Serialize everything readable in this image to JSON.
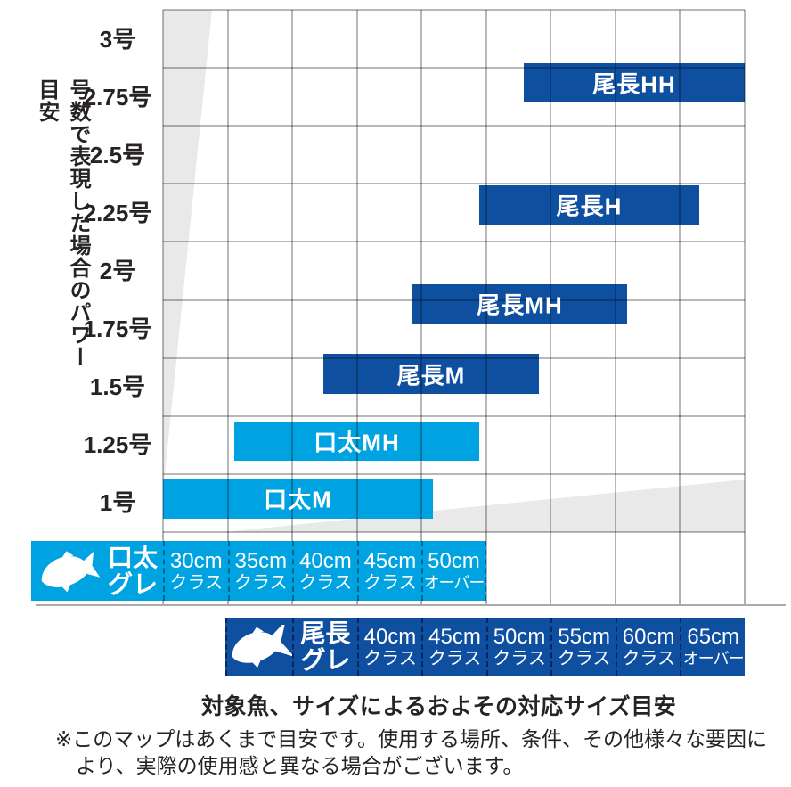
{
  "palette": {
    "light_blue": "#00a3e1",
    "dark_blue": "#0f4fa0",
    "wedge_gray": "#e9e9e9",
    "grid_gray": "#ababab",
    "text_dark": "#262226",
    "white": "#ffffff"
  },
  "y_axis": {
    "title": "号数で表現した場合のパワー目安",
    "labels": [
      "3号",
      "2.75号",
      "2.5号",
      "2.25号",
      "2号",
      "1.75号",
      "1.5号",
      "1.25号",
      "1号"
    ]
  },
  "chart_data": {
    "type": "bar",
    "orientation": "horizontal-range",
    "grid": {
      "cols": 9,
      "rows": 9
    },
    "power_axis_labels": [
      "3号",
      "2.75号",
      "2.5号",
      "2.25号",
      "2号",
      "1.75号",
      "1.5号",
      "1.25号",
      "1号"
    ],
    "kuchibuto_scale_classes": [
      "30cmクラス",
      "35cmクラス",
      "40cmクラス",
      "45cmクラス",
      "50cmオーバー"
    ],
    "oonaga_scale_classes": [
      "40cmクラス",
      "45cmクラス",
      "50cmクラス",
      "55cmクラス",
      "60cmクラス",
      "65cmオーバー"
    ],
    "series": [
      {
        "label": "尾長HH",
        "family": "oonaga",
        "color": "dark_blue",
        "col_start": 5.582,
        "col_end": 9.0,
        "row_start": 0.921,
        "row_end": 1.597,
        "power_range_gou": [
          2.73,
          2.9
        ],
        "size_scale": "oonaga",
        "size_range_cm": [
          53,
          70
        ]
      },
      {
        "label": "尾長H",
        "family": "oonaga",
        "color": "dark_blue",
        "col_start": 4.893,
        "col_end": 8.297,
        "row_start": 3.026,
        "row_end": 3.701,
        "power_range_gou": [
          2.2,
          2.37
        ],
        "size_scale": "oonaga",
        "size_range_cm": [
          49.5,
          66.5
        ]
      },
      {
        "label": "尾長MH",
        "family": "oonaga",
        "color": "dark_blue",
        "col_start": 3.859,
        "col_end": 7.181,
        "row_start": 4.73,
        "row_end": 5.406,
        "power_range_gou": [
          1.77,
          1.94
        ],
        "size_scale": "oonaga",
        "size_range_cm": [
          44.3,
          61
        ]
      },
      {
        "label": "尾長M",
        "family": "oonaga",
        "color": "dark_blue",
        "col_start": 2.481,
        "col_end": 5.816,
        "row_start": 5.929,
        "row_end": 6.62,
        "power_range_gou": [
          1.47,
          1.64
        ],
        "size_scale": "oonaga",
        "size_range_cm": [
          37.4,
          54.1
        ]
      },
      {
        "label": "口太MH",
        "family": "kuchibuto",
        "color": "light_blue",
        "col_start": 1.103,
        "col_end": 4.893,
        "row_start": 7.095,
        "row_end": 7.771,
        "power_range_gou": [
          1.18,
          1.35
        ],
        "size_scale": "kuchibuto",
        "size_range_cm": [
          35.5,
          54.5
        ]
      },
      {
        "label": "口太M",
        "family": "kuchibuto",
        "color": "light_blue",
        "col_start": 0.0,
        "col_end": 4.176,
        "row_start": 8.078,
        "row_end": 8.769,
        "power_range_gou": [
          0.93,
          1.11
        ],
        "size_scale": "kuchibuto",
        "size_range_cm": [
          30,
          51
        ]
      }
    ]
  },
  "scales": {
    "kuchibuto": {
      "header_line1": "口太",
      "header_line2": "グレ",
      "fish_icon": "kuchibuto-fish-icon",
      "cells": [
        {
          "size": "30cm",
          "cls": "クラス"
        },
        {
          "size": "35cm",
          "cls": "クラス"
        },
        {
          "size": "40cm",
          "cls": "クラス"
        },
        {
          "size": "45cm",
          "cls": "クラス"
        },
        {
          "size": "50cm",
          "cls": "オーバー"
        }
      ]
    },
    "oonaga": {
      "header_line1": "尾長",
      "header_line2": "グレ",
      "fish_icon": "oonaga-fish-icon",
      "cells": [
        {
          "size": "40cm",
          "cls": "クラス"
        },
        {
          "size": "45cm",
          "cls": "クラス"
        },
        {
          "size": "50cm",
          "cls": "クラス"
        },
        {
          "size": "55cm",
          "cls": "クラス"
        },
        {
          "size": "60cm",
          "cls": "クラス"
        },
        {
          "size": "65cm",
          "cls": "オーバー"
        }
      ]
    }
  },
  "caption": "対象魚、サイズによるおよその対応サイズ目安",
  "footnote": {
    "line1": "※このマップはあくまで目安です。使用する場所、条件、その他様々な要因に",
    "line2": "より、実際の使用感と異なる場合がございます。"
  }
}
